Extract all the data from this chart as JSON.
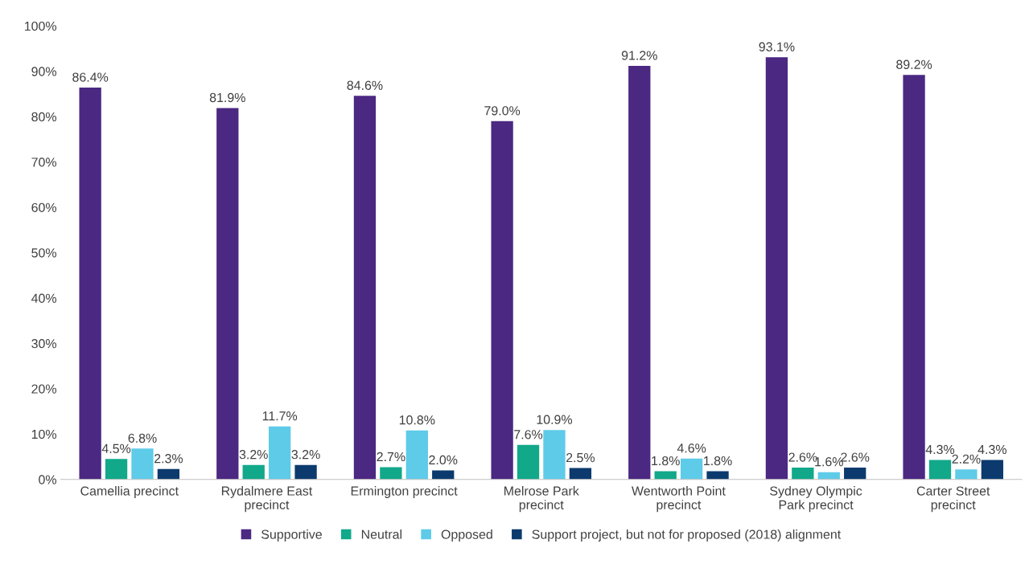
{
  "chart_data": {
    "type": "bar",
    "categories": [
      "Camellia precinct",
      "Rydalmere East\nprecinct",
      "Ermington precinct",
      "Melrose Park\nprecinct",
      "Wentworth Point\nprecinct",
      "Sydney Olympic\nPark precinct",
      "Carter Street\nprecinct"
    ],
    "series": [
      {
        "name": "Supportive",
        "color": "#4b2882",
        "values": [
          86.4,
          81.9,
          84.6,
          79.0,
          91.2,
          93.1,
          89.2
        ],
        "value_labels": [
          "86.4%",
          "81.9%",
          "84.6%",
          "79.0%",
          "91.2%",
          "93.1%",
          "89.2%"
        ]
      },
      {
        "name": "Neutral",
        "color": "#12a88a",
        "values": [
          4.5,
          3.2,
          2.7,
          7.6,
          1.8,
          2.6,
          4.3
        ],
        "value_labels": [
          "4.5%",
          "3.2%",
          "2.7%",
          "7.6%",
          "1.8%",
          "2.6%",
          "4.3%"
        ]
      },
      {
        "name": "Opposed",
        "color": "#5ecbe8",
        "values": [
          6.8,
          11.7,
          10.8,
          10.9,
          4.6,
          1.6,
          2.2
        ],
        "value_labels": [
          "6.8%",
          "11.7%",
          "10.8%",
          "10.9%",
          "4.6%",
          "1.6%",
          "2.2%"
        ]
      },
      {
        "name": "Support project, but not for proposed (2018) alignment",
        "color": "#0c3a6e",
        "values": [
          2.3,
          3.2,
          2.0,
          2.5,
          1.8,
          2.6,
          4.3
        ],
        "value_labels": [
          "2.3%",
          "3.2%",
          "2.0%",
          "2.5%",
          "1.8%",
          "2.6%",
          "4.3%"
        ]
      }
    ],
    "ylim": [
      0,
      100
    ],
    "yticks": [
      {
        "value": 0,
        "label": "0%"
      },
      {
        "value": 10,
        "label": "10%"
      },
      {
        "value": 20,
        "label": "20%"
      },
      {
        "value": 30,
        "label": "30%"
      },
      {
        "value": 40,
        "label": "40%"
      },
      {
        "value": 50,
        "label": "50%"
      },
      {
        "value": 60,
        "label": "60%"
      },
      {
        "value": 70,
        "label": "70%"
      },
      {
        "value": 80,
        "label": "80%"
      },
      {
        "value": 90,
        "label": "90%"
      },
      {
        "value": 100,
        "label": "100%"
      }
    ],
    "grid": false,
    "legend": "bottom"
  }
}
